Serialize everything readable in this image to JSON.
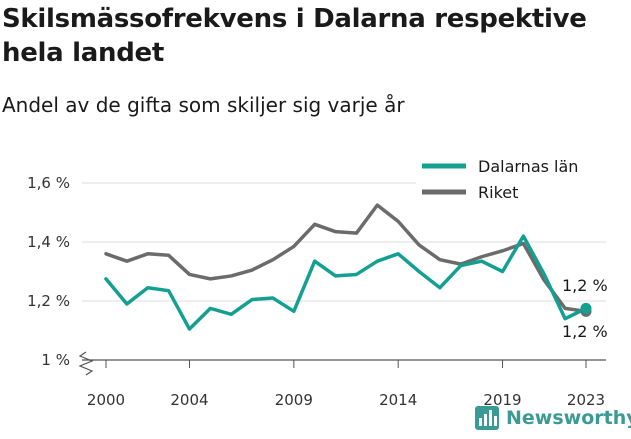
{
  "title": "Skilsmässofrekvens i Dalarna respektive hela landet",
  "subtitle": "Andel av de gifta som skiljer sig varje år",
  "brand": {
    "name": "Newsworthy",
    "icon": "newsworthy-logo-icon"
  },
  "colors": {
    "dalarna": "#13a091",
    "riket": "#6b6b6b",
    "grid": "#dddddd",
    "axis": "#555555"
  },
  "chart_data": {
    "type": "line",
    "x": [
      2000,
      2001,
      2002,
      2003,
      2004,
      2005,
      2006,
      2007,
      2008,
      2009,
      2010,
      2011,
      2012,
      2013,
      2014,
      2015,
      2016,
      2017,
      2018,
      2019,
      2020,
      2021,
      2022,
      2023
    ],
    "series": [
      {
        "name": "Dalarnas län",
        "values": [
          1.275,
          1.19,
          1.245,
          1.235,
          1.105,
          1.175,
          1.155,
          1.205,
          1.21,
          1.165,
          1.335,
          1.285,
          1.29,
          1.335,
          1.36,
          1.3,
          1.245,
          1.32,
          1.335,
          1.3,
          1.42,
          1.29,
          1.14,
          1.175
        ]
      },
      {
        "name": "Riket",
        "values": [
          1.36,
          1.335,
          1.36,
          1.355,
          1.29,
          1.275,
          1.285,
          1.305,
          1.34,
          1.385,
          1.46,
          1.435,
          1.43,
          1.525,
          1.47,
          1.39,
          1.34,
          1.325,
          1.35,
          1.37,
          1.395,
          1.27,
          1.175,
          1.165
        ]
      }
    ],
    "xticks": [
      2000,
      2004,
      2009,
      2014,
      2019,
      2023
    ],
    "yticks": [
      {
        "value": 1.0,
        "label": "1 %"
      },
      {
        "value": 1.2,
        "label": "1,2 %"
      },
      {
        "value": 1.4,
        "label": "1,4 %"
      },
      {
        "value": 1.6,
        "label": "1,6 %"
      }
    ],
    "ylim": [
      1.0,
      1.6
    ],
    "xlim": [
      2000,
      2023
    ],
    "end_labels": {
      "dalarna": "1,2 %",
      "riket": "1,2 %"
    },
    "legend_position": "top-right",
    "grid": true
  }
}
